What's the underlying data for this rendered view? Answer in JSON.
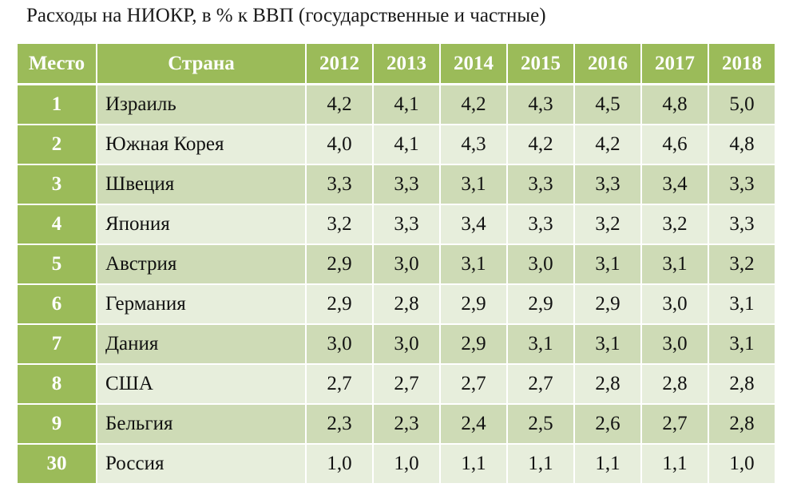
{
  "title": "Расходы на НИОКР, в % к ВВП (государственные  и частные)",
  "header": {
    "rank": "Место",
    "country": "Страна",
    "years": [
      "2012",
      "2013",
      "2014",
      "2015",
      "2016",
      "2017",
      "2018"
    ]
  },
  "rows": [
    {
      "rank": "1",
      "country": "Израиль",
      "values": [
        "4,2",
        "4,1",
        "4,2",
        "4,3",
        "4,5",
        "4,8",
        "5,0"
      ]
    },
    {
      "rank": "2",
      "country": "Южная Корея",
      "values": [
        "4,0",
        "4,1",
        "4,3",
        "4,2",
        "4,2",
        "4,6",
        "4,8"
      ]
    },
    {
      "rank": "3",
      "country": "Швеция",
      "values": [
        "3,3",
        "3,3",
        "3,1",
        "3,3",
        "3,3",
        "3,4",
        "3,3"
      ]
    },
    {
      "rank": "4",
      "country": "Япония",
      "values": [
        "3,2",
        "3,3",
        "3,4",
        "3,3",
        "3,2",
        "3,2",
        "3,3"
      ]
    },
    {
      "rank": "5",
      "country": "Австрия",
      "values": [
        "2,9",
        "3,0",
        "3,1",
        "3,0",
        "3,1",
        "3,1",
        "3,2"
      ]
    },
    {
      "rank": "6",
      "country": "Германия",
      "values": [
        "2,9",
        "2,8",
        "2,9",
        "2,9",
        "2,9",
        "3,0",
        "3,1"
      ]
    },
    {
      "rank": "7",
      "country": "Дания",
      "values": [
        "3,0",
        "3,0",
        "2,9",
        "3,1",
        "3,1",
        "3,0",
        "3,1"
      ]
    },
    {
      "rank": "8",
      "country": "США",
      "values": [
        "2,7",
        "2,7",
        "2,7",
        "2,7",
        "2,8",
        "2,8",
        "2,8"
      ]
    },
    {
      "rank": "9",
      "country": "Бельгия",
      "values": [
        "2,3",
        "2,3",
        "2,4",
        "2,5",
        "2,6",
        "2,7",
        "2,8"
      ]
    },
    {
      "rank": "30",
      "country": "Россия",
      "values": [
        "1,0",
        "1,0",
        "1,1",
        "1,1",
        "1,1",
        "1,1",
        "1,0"
      ]
    }
  ],
  "colors": {
    "header_green": "#9bbb59",
    "row_dark": "#cedbb6",
    "row_light": "#e7eedc"
  }
}
